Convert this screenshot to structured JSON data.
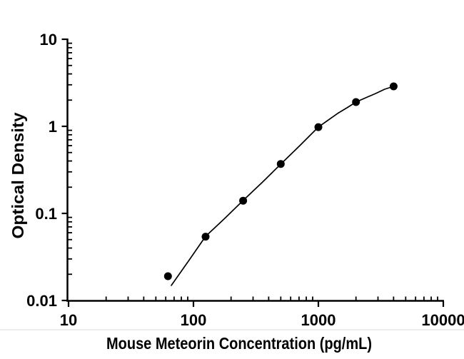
{
  "chart_data": {
    "type": "scatter",
    "title": "",
    "xlabel": "Mouse Meteorin Concentration (pg/mL)",
    "ylabel": "Optical Density",
    "x_scale": "log",
    "y_scale": "log",
    "xlim": [
      10,
      10000
    ],
    "ylim": [
      0.01,
      10
    ],
    "grid": false,
    "legend": "none",
    "x_ticks": [
      10,
      100,
      1000,
      10000
    ],
    "x_tick_labels": [
      "10",
      "100",
      "1000",
      "10000"
    ],
    "y_ticks": [
      0.01,
      0.1,
      1,
      10
    ],
    "y_tick_labels": [
      "0.01",
      "0.1",
      "1",
      "10"
    ],
    "series": [
      {
        "name": "standard-curve-points",
        "marker": "filled-circle",
        "marker_diameter_px": 11,
        "x": [
          62.5,
          125,
          250,
          500,
          1000,
          2000,
          4000
        ],
        "y": [
          0.019,
          0.054,
          0.14,
          0.37,
          0.98,
          1.9,
          2.88
        ]
      }
    ],
    "fit_curve": {
      "name": "fitted-standard-curve",
      "x": [
        66.5,
        77.8,
        91,
        106.8,
        125,
        149.3,
        178,
        250,
        358,
        500,
        710,
        1000,
        1426,
        1694,
        2000,
        2399,
        2864,
        3397,
        4000
      ],
      "y": [
        0.0149,
        0.0205,
        0.0282,
        0.0393,
        0.0546,
        0.0692,
        0.0877,
        0.1406,
        0.2296,
        0.368,
        0.601,
        0.981,
        1.406,
        1.633,
        1.9,
        2.13,
        2.38,
        2.67,
        2.88
      ]
    },
    "colors": {
      "points": "#000000",
      "curve": "#000000",
      "axis": "#000000",
      "text": "#000000",
      "background": "#ffffff",
      "faint_divider": "#e6e6e6"
    }
  }
}
